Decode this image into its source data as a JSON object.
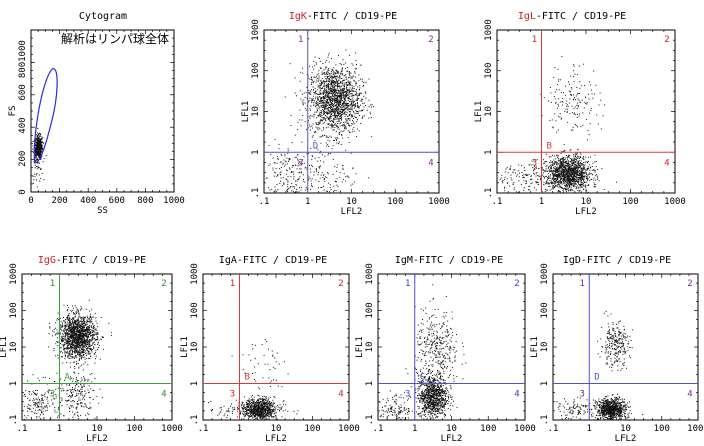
{
  "chart_data": [
    {
      "id": "cyto",
      "type": "scatter",
      "title": "Cytogram",
      "annotation": "解析はリンパ球全体",
      "xlabel": "SS",
      "ylabel": "FS",
      "x_ticks": [
        "0",
        "200",
        "400",
        "600",
        "800",
        "1000"
      ],
      "y_ticks": [
        "0",
        "200",
        "400",
        "600",
        "8001000"
      ],
      "clusters": [
        {
          "x": 50,
          "y": 280,
          "sx": 14,
          "sy": 35,
          "n": 500
        },
        {
          "x": 40,
          "y": 180,
          "sx": 20,
          "sy": 60,
          "n": 60
        }
      ]
    },
    {
      "id": "igk",
      "type": "scatter",
      "title_colored": "IgK",
      "title_rest": "-FITC / CD19-PE",
      "xlabel": "LFL2",
      "ylabel": "LFL1",
      "x_ticks": [
        ".1",
        "1",
        "10",
        "100",
        "1000"
      ],
      "y_ticks": [
        ".1",
        "1",
        "10",
        "100",
        "1000"
      ],
      "gate_label": "D",
      "quadrant_labels": [
        "1",
        "2",
        "3",
        "4"
      ],
      "clusters": [
        {
          "x": 4,
          "y": 20,
          "sx": 0.3,
          "sy": 0.42,
          "n": 1600
        },
        {
          "x": 0.3,
          "y": 0.3,
          "sx": 0.35,
          "sy": 0.4,
          "n": 220
        },
        {
          "x": 3,
          "y": 0.3,
          "sx": 0.35,
          "sy": 0.35,
          "n": 120
        }
      ]
    },
    {
      "id": "igl",
      "type": "scatter",
      "title_colored": "IgL",
      "title_rest": "-FITC / CD19-PE",
      "xlabel": "LFL2",
      "ylabel": "LFL1",
      "x_ticks": [
        ".1",
        "1",
        "10",
        "100",
        "1000"
      ],
      "y_ticks": [
        ".1",
        "1",
        "10",
        "100",
        "1000"
      ],
      "gate_label": "B",
      "quadrant_labels": [
        "1",
        "2",
        "3",
        "4"
      ],
      "clusters": [
        {
          "x": 4,
          "y": 0.3,
          "sx": 0.25,
          "sy": 0.22,
          "n": 1300
        },
        {
          "x": 5,
          "y": 20,
          "sx": 0.3,
          "sy": 0.45,
          "n": 160
        },
        {
          "x": 0.4,
          "y": 0.25,
          "sx": 0.4,
          "sy": 0.2,
          "n": 150
        }
      ]
    },
    {
      "id": "igg",
      "type": "scatter",
      "title_colored": "IgG",
      "title_rest": "-FITC / CD19-PE",
      "xlabel": "LFL2",
      "ylabel": "LFL1",
      "x_ticks": [
        ".1",
        "1",
        "10",
        "100",
        "1000"
      ],
      "y_ticks": [
        ".1",
        "1",
        "10",
        "100",
        "1000"
      ],
      "gate_label": "A",
      "quadrant_labels": [
        "1",
        "2",
        "3",
        "4"
      ],
      "clusters": [
        {
          "x": 3,
          "y": 20,
          "sx": 0.25,
          "sy": 0.3,
          "n": 1500
        },
        {
          "x": 0.3,
          "y": 0.3,
          "sx": 0.3,
          "sy": 0.3,
          "n": 200
        },
        {
          "x": 3,
          "y": 0.5,
          "sx": 0.25,
          "sy": 0.35,
          "n": 200
        }
      ]
    },
    {
      "id": "iga",
      "type": "scatter",
      "title_colored": "",
      "title_rest": "IgA-FITC / CD19-PE",
      "xlabel": "LFL2",
      "ylabel": "LFL1",
      "x_ticks": [
        ".1",
        "1",
        "10",
        "100",
        "1000"
      ],
      "y_ticks": [
        ".1",
        "1",
        "10",
        "100",
        "1000"
      ],
      "gate_label": "B",
      "quadrant_labels": [
        "1",
        "2",
        "3",
        "4"
      ],
      "clusters": [
        {
          "x": 3.5,
          "y": 0.2,
          "sx": 0.2,
          "sy": 0.15,
          "n": 700
        },
        {
          "x": 2,
          "y": 0.2,
          "sx": 0.45,
          "sy": 0.12,
          "n": 200
        },
        {
          "x": 5,
          "y": 3,
          "sx": 0.35,
          "sy": 0.55,
          "n": 50
        }
      ]
    },
    {
      "id": "igm",
      "type": "scatter",
      "title_colored": "",
      "title_rest": "IgM-FITC / CD19-PE",
      "xlabel": "LFL2",
      "ylabel": "LFL1",
      "x_ticks": [
        ".1",
        "1",
        "10",
        "100",
        "1000"
      ],
      "y_ticks": [
        ".1",
        "1",
        "10",
        "100",
        "1000"
      ],
      "gate_label": "C",
      "quadrant_labels": [
        "1",
        "2",
        "3",
        "4"
      ],
      "clusters": [
        {
          "x": 3,
          "y": 0.45,
          "sx": 0.2,
          "sy": 0.3,
          "n": 900
        },
        {
          "x": 4,
          "y": 8,
          "sx": 0.3,
          "sy": 0.55,
          "n": 350
        },
        {
          "x": 0.3,
          "y": 0.2,
          "sx": 0.3,
          "sy": 0.2,
          "n": 150
        }
      ]
    },
    {
      "id": "igd",
      "type": "scatter",
      "title_colored": "",
      "title_rest": "IgD-FITC / CD19-PE",
      "xlabel": "LFL2",
      "ylabel": "LFL1",
      "x_ticks": [
        ".1",
        "1",
        "10",
        "100",
        "1000"
      ],
      "y_ticks": [
        ".1",
        "1",
        "10",
        "100",
        "1000"
      ],
      "gate_label": "D",
      "quadrant_labels": [
        "1",
        "2",
        "3",
        "4"
      ],
      "clusters": [
        {
          "x": 4,
          "y": 0.2,
          "sx": 0.2,
          "sy": 0.15,
          "n": 800
        },
        {
          "x": 5,
          "y": 12,
          "sx": 0.2,
          "sy": 0.3,
          "n": 250
        },
        {
          "x": 0.5,
          "y": 0.2,
          "sx": 0.4,
          "sy": 0.15,
          "n": 120
        }
      ]
    }
  ],
  "colors": {
    "title_accent": "#cc2222",
    "gate_blue": "#4f4fd8",
    "gate_red": "#d83a3a",
    "gate_green": "#3aa03a",
    "quad_purple": "#7a2a8a",
    "quad_red": "#cc2222",
    "quad_green": "#2a8a2a",
    "quad_blue": "#3a3ac8",
    "outline_blue": "#2a2ae0",
    "dot": "#111111"
  },
  "gate_color_by_panel": {
    "igk": "gate_blue",
    "igl": "gate_red",
    "igg": "gate_green",
    "iga": "gate_red",
    "igm": "gate_blue",
    "igd": "gate_blue"
  },
  "quad_color_by_panel": {
    "igk": "quad_purple",
    "igl": "quad_red",
    "igg": "quad_green",
    "iga": "quad_red",
    "igm": "quad_blue",
    "igd": "quad_purple"
  }
}
